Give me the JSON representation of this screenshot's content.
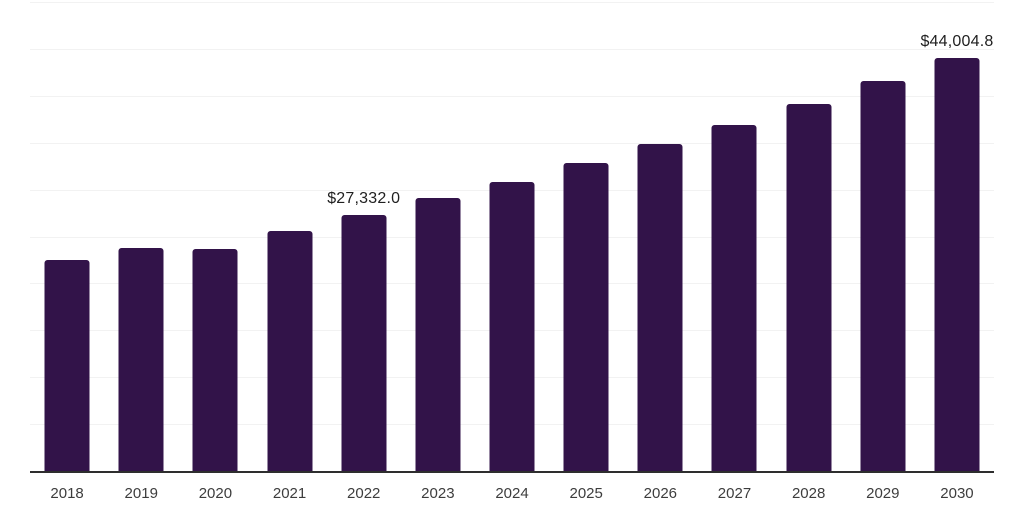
{
  "chart_data": {
    "type": "bar",
    "title": "",
    "xlabel": "",
    "ylabel": "",
    "categories": [
      "2018",
      "2019",
      "2020",
      "2021",
      "2022",
      "2023",
      "2024",
      "2025",
      "2026",
      "2027",
      "2028",
      "2029",
      "2030"
    ],
    "values": [
      22450,
      23820,
      23620,
      25580,
      27332.0,
      29100,
      30810,
      32830,
      34860,
      36880,
      39120,
      41570,
      44004.8
    ],
    "ylim": [
      0,
      50000
    ],
    "gridline_step": 5000,
    "grid": true,
    "legend_position": "none",
    "data_labels": [
      {
        "category": "2022",
        "text": "$27,332.0"
      },
      {
        "category": "2030",
        "text": "$44,004.8"
      }
    ]
  },
  "colors": {
    "bar": "#321349",
    "axis_line": "#2e2e2e",
    "gridline": "#f2f2f2",
    "data_label_text": "#1f1f1f",
    "tick_text": "#3d3d3d",
    "background": "#ffffff"
  }
}
